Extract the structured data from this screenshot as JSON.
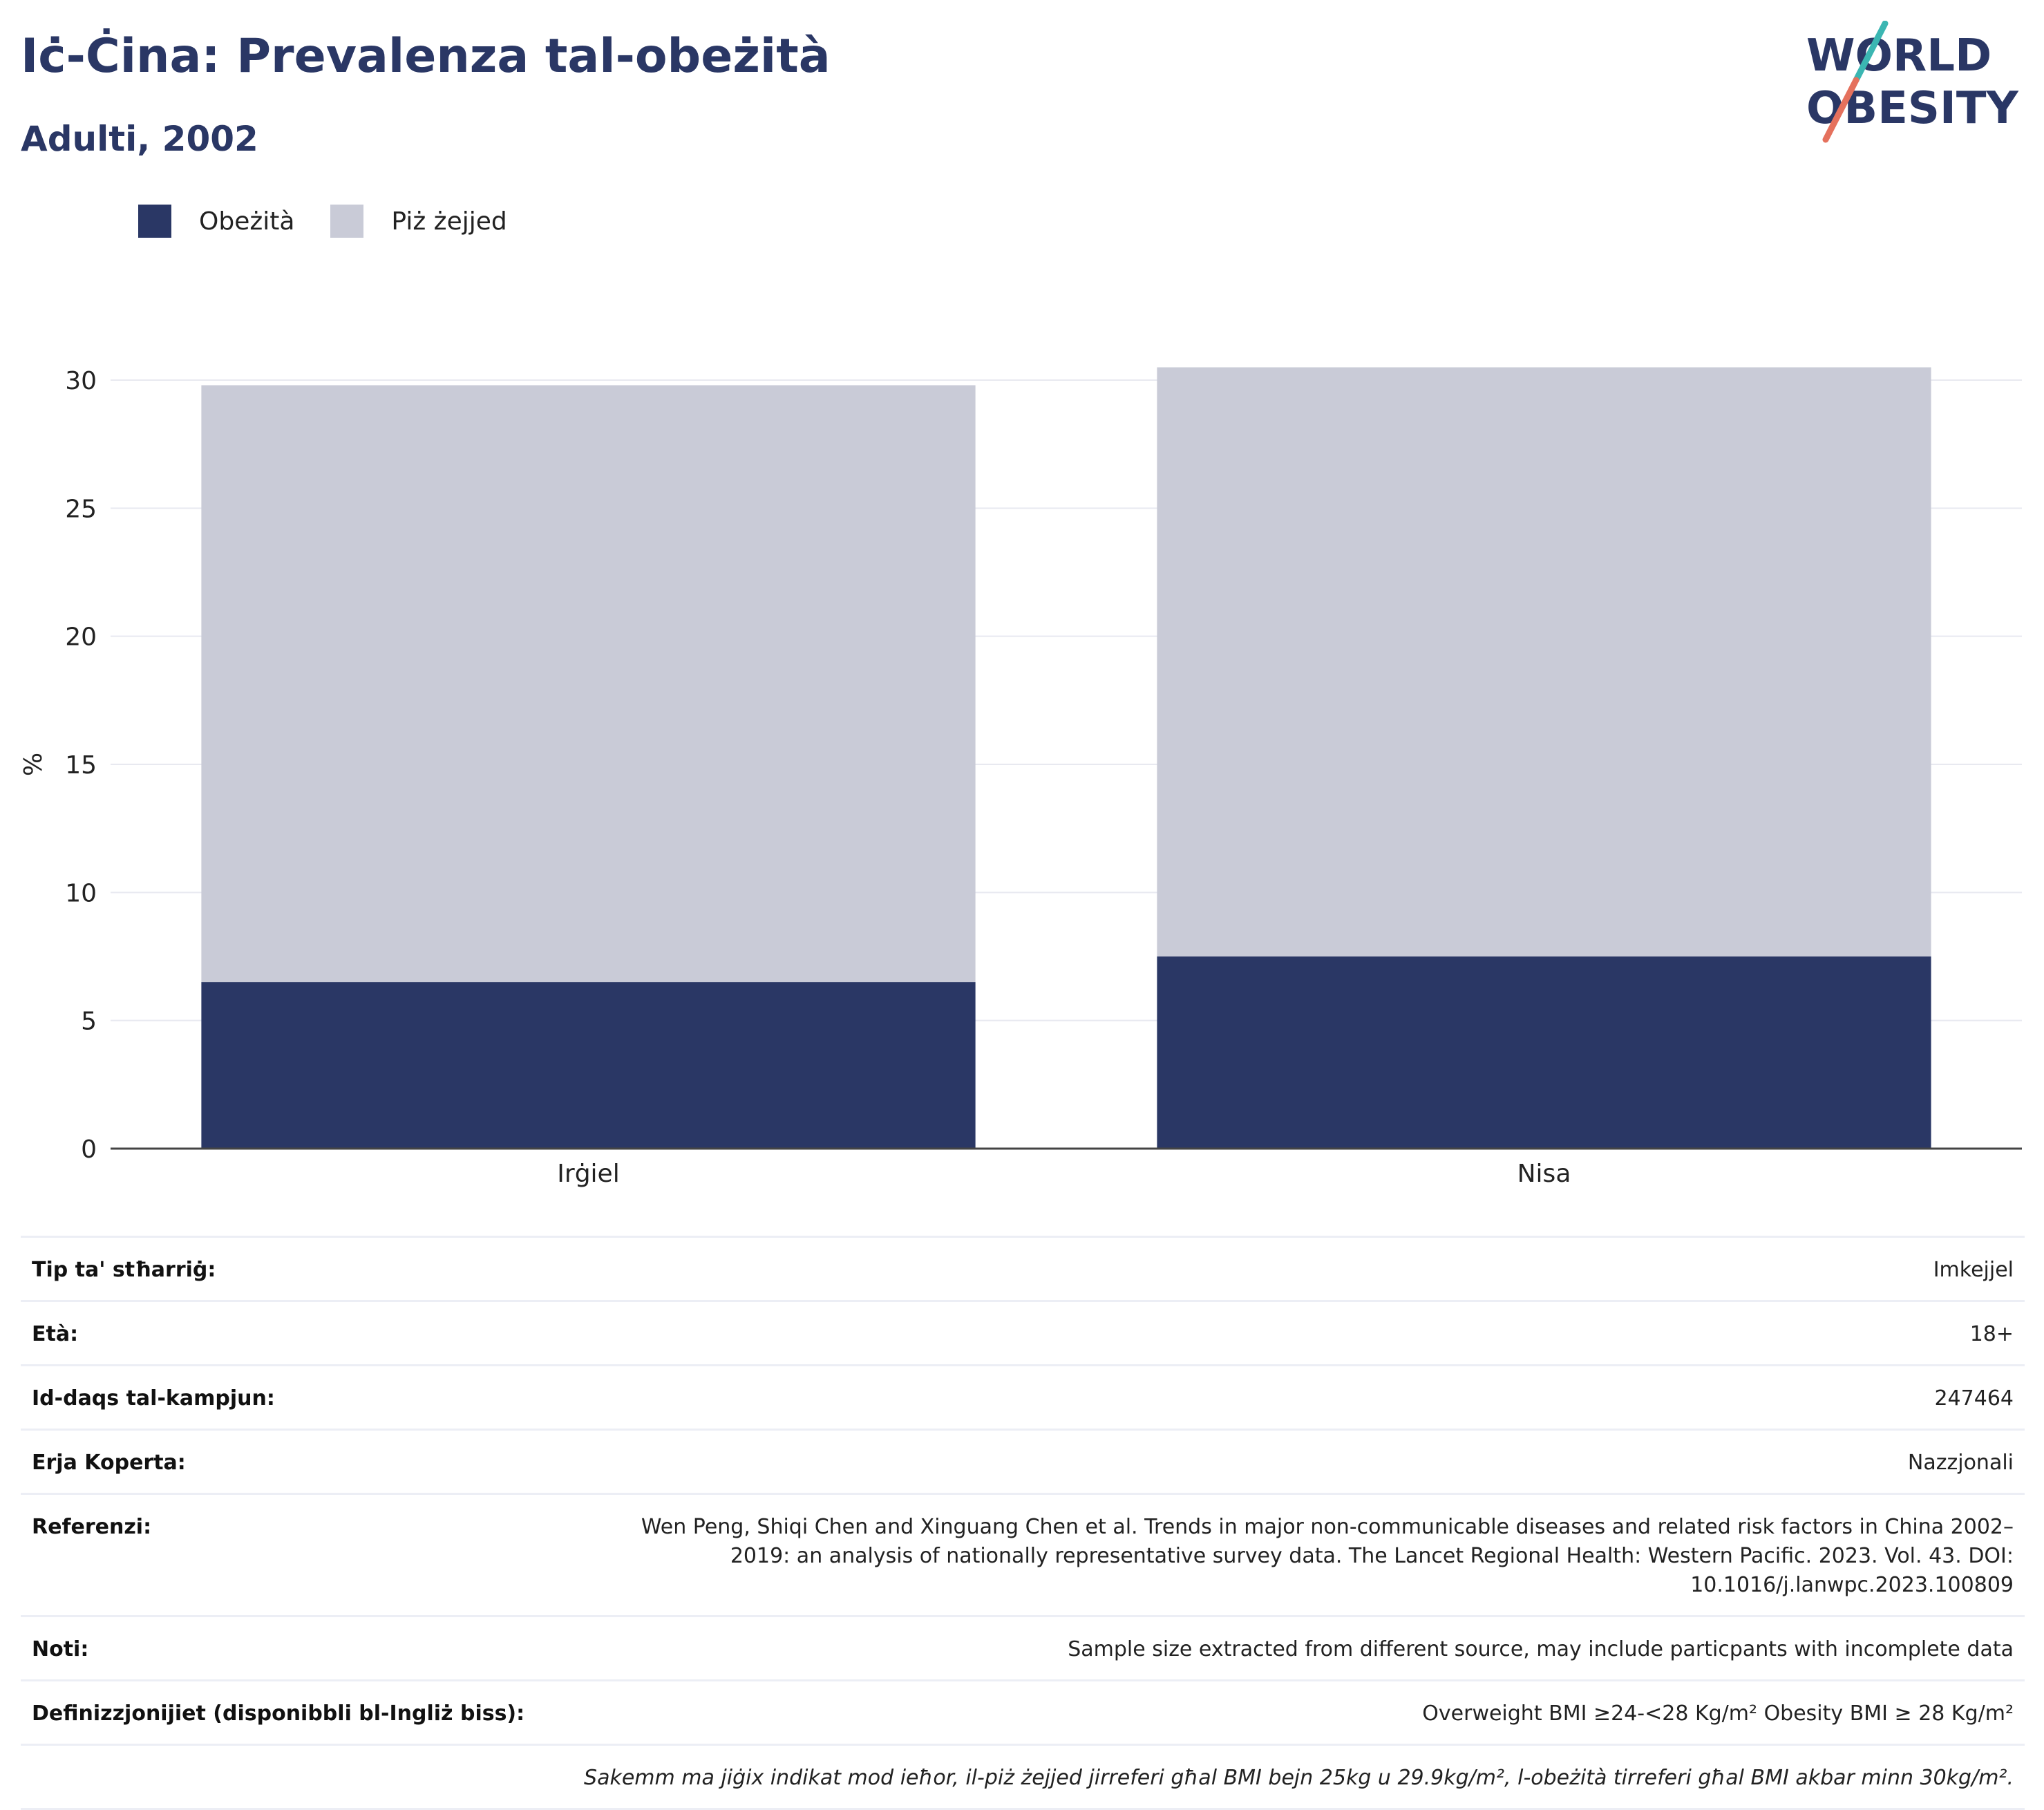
{
  "header": {
    "title": "Iċ-Ċina: Prevalenza tal-obeżità",
    "subtitle": "Adulti, 2002"
  },
  "logo": {
    "line1": "WORLD",
    "line2": "OBESITY"
  },
  "colors": {
    "obesity": "#2a3765",
    "overweight": "#c9cbd7",
    "title": "#2a3765"
  },
  "chart_data": {
    "type": "bar",
    "stacked": true,
    "categories": [
      "Irġiel",
      "Nisa"
    ],
    "series": [
      {
        "name": "Obeżità",
        "values": [
          6.5,
          7.5
        ]
      },
      {
        "name": "Piż żejjed",
        "values": [
          23.3,
          23.0
        ]
      }
    ],
    "ylabel": "%",
    "ylim": [
      0,
      30
    ],
    "yticks": [
      0,
      5,
      10,
      15,
      20,
      25,
      30
    ],
    "grid": true,
    "legend": "top-left"
  },
  "info": {
    "rows": [
      {
        "label": "Tip ta' stħarriġ:",
        "value": "Imkejjel"
      },
      {
        "label": "Età:",
        "value": "18+"
      },
      {
        "label": "Id-daqs tal-kampjun:",
        "value": "247464"
      },
      {
        "label": "Erja Koperta:",
        "value": "Nazzjonali"
      },
      {
        "label": "Referenzi:",
        "value": "Wen Peng, Shiqi Chen and Xinguang Chen et al. Trends in major non-communicable diseases and related risk factors in China 2002–2019: an analysis of nationally representative survey data. The Lancet Regional Health: Western Pacific. 2023. Vol. 43. DOI: 10.1016/j.lanwpc.2023.100809"
      },
      {
        "label": "Noti:",
        "value": "Sample size extracted from different source, may include particpants with incomplete data"
      },
      {
        "label": "Definizzjonijiet (disponibbli bl-Ingliż biss):",
        "value": "Overweight BMI ≥24-<28 Kg/m² Obesity BMI ≥ 28 Kg/m²"
      }
    ],
    "footnote": "Sakemm ma jiġix indikat mod ieħor, il-piż żejjed jirreferi għal BMI bejn 25kg u 29.9kg/m², l-obeżità tirreferi għal BMI akbar minn 30kg/m²."
  }
}
